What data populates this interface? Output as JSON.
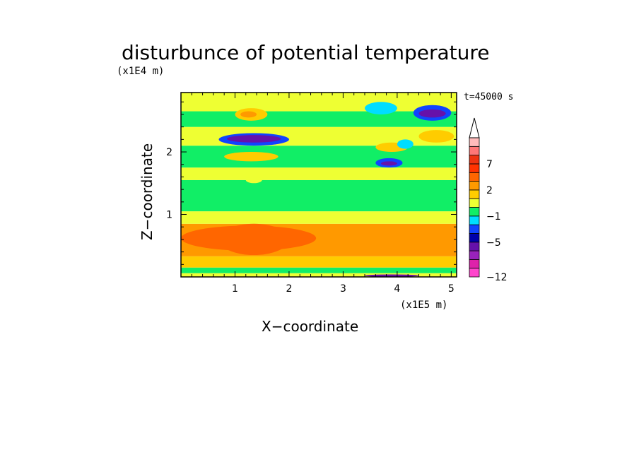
{
  "chart_data": {
    "type": "heatmap",
    "title": "disturbunce of potential temperature",
    "subtitle": "(x1E4 m)",
    "time_label": "t=45000 s",
    "xlabel": "X−coordinate",
    "ylabel": "Z−coordinate",
    "x_units": "(x1E5 m)",
    "xlim": [
      0,
      5.1
    ],
    "ylim": [
      0,
      2.95
    ],
    "x_ticks": [
      "1",
      "2",
      "3",
      "4",
      "5"
    ],
    "x_tick_values": [
      1,
      2,
      3,
      4,
      5
    ],
    "y_ticks": [
      "1",
      "2"
    ],
    "y_tick_values": [
      1,
      2
    ],
    "grid": false,
    "colorbar": {
      "colors": [
        "#ff44cc",
        "#dd22aa",
        "#9922bb",
        "#6611aa",
        "#0000aa",
        "#1144ff",
        "#00ddff",
        "#11ee66",
        "#eeff33",
        "#ffcc00",
        "#ff9900",
        "#ff6600",
        "#ff3300",
        "#ee3311",
        "#ff7777",
        "#ffbbbb"
      ],
      "tick_labels": [
        "−12",
        "−5",
        "−1",
        "2",
        "7"
      ],
      "tick_levels": [
        0,
        4,
        7,
        10,
        13
      ]
    },
    "bands": [
      {
        "z": [
          0.0,
          0.06
        ],
        "value": 1
      },
      {
        "z": [
          0.06,
          0.15
        ],
        "value": 0
      },
      {
        "z": [
          0.15,
          0.33
        ],
        "value": 2
      },
      {
        "z": [
          0.33,
          0.85
        ],
        "value": 3
      },
      {
        "z": [
          0.85,
          1.05
        ],
        "value": 1
      },
      {
        "z": [
          1.05,
          1.55
        ],
        "value": 0
      },
      {
        "z": [
          1.55,
          1.75
        ],
        "value": 1
      },
      {
        "z": [
          1.75,
          2.1
        ],
        "value": 0
      },
      {
        "z": [
          2.1,
          2.4
        ],
        "value": 1
      },
      {
        "z": [
          2.4,
          2.65
        ],
        "value": 0
      },
      {
        "z": [
          2.65,
          2.95
        ],
        "value": 1
      }
    ],
    "blobs": [
      {
        "x": [
          0.7,
          2.0
        ],
        "z": [
          0.35,
          0.85
        ],
        "value": 4
      },
      {
        "x": [
          0.0,
          2.5
        ],
        "z": [
          0.42,
          0.82
        ],
        "value": 4
      },
      {
        "x": [
          0.7,
          2.0
        ],
        "z": [
          2.1,
          2.3
        ],
        "value": -2
      },
      {
        "x": [
          0.85,
          1.85
        ],
        "z": [
          2.15,
          2.27
        ],
        "value": -4
      },
      {
        "x": [
          4.3,
          5.0
        ],
        "z": [
          2.5,
          2.75
        ],
        "value": -2
      },
      {
        "x": [
          4.4,
          4.9
        ],
        "z": [
          2.55,
          2.68
        ],
        "value": -4
      },
      {
        "x": [
          3.6,
          4.1
        ],
        "z": [
          1.75,
          1.9
        ],
        "value": -2
      },
      {
        "x": [
          3.7,
          4.0
        ],
        "z": [
          1.78,
          1.85
        ],
        "value": -4
      },
      {
        "x": [
          1.0,
          1.6
        ],
        "z": [
          2.5,
          2.7
        ],
        "value": 2
      },
      {
        "x": [
          1.1,
          1.4
        ],
        "z": [
          2.55,
          2.65
        ],
        "value": 3
      },
      {
        "x": [
          4.4,
          5.05
        ],
        "z": [
          2.15,
          2.35
        ],
        "value": 2
      },
      {
        "x": [
          3.6,
          4.2
        ],
        "z": [
          2.0,
          2.15
        ],
        "value": 2
      },
      {
        "x": [
          0.8,
          1.8
        ],
        "z": [
          1.85,
          2.0
        ],
        "value": 2
      },
      {
        "x": [
          3.4,
          4.0
        ],
        "z": [
          2.6,
          2.8
        ],
        "value": -1
      },
      {
        "x": [
          4.0,
          4.3
        ],
        "z": [
          2.05,
          2.2
        ],
        "value": -1
      },
      {
        "x": [
          1.2,
          1.5
        ],
        "z": [
          1.5,
          1.6
        ],
        "value": 1
      },
      {
        "x": [
          3.4,
          4.4
        ],
        "z": [
          0.0,
          0.04
        ],
        "value": -4
      }
    ]
  }
}
